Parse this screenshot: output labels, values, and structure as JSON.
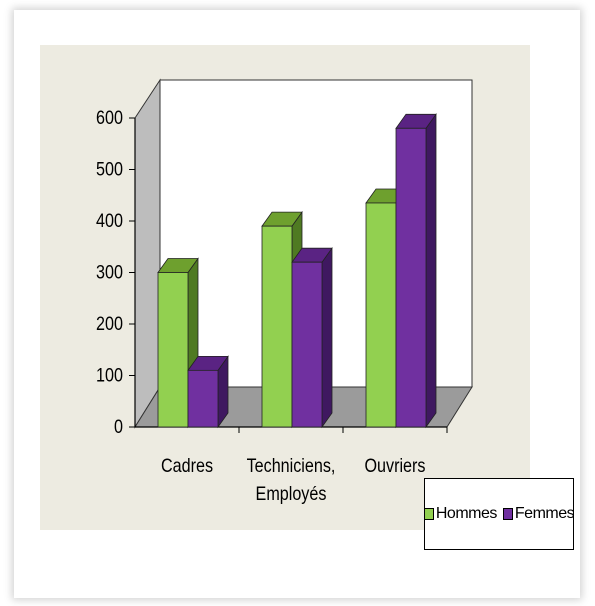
{
  "chart_data": {
    "type": "bar",
    "categories": [
      [
        "Cadres"
      ],
      [
        "Techniciens,",
        "Employés"
      ],
      [
        "Ouvriers"
      ]
    ],
    "series": [
      {
        "name": "Hommes",
        "values": [
          300,
          390,
          435
        ],
        "color": "#92d050",
        "top_color": "#6ea02e",
        "side_color": "#4f7a22"
      },
      {
        "name": "Femmes",
        "values": [
          110,
          320,
          580
        ],
        "color": "#7030a0",
        "top_color": "#5a2383",
        "side_color": "#3f1860"
      }
    ],
    "ylim": [
      0,
      600
    ],
    "yticks": [
      0,
      100,
      200,
      300,
      400,
      500,
      600
    ],
    "grid": false,
    "legend_position": "bottom-right",
    "colors": {
      "plot_background": "#edebe1",
      "wall": "#ffffff",
      "floor": "#9b9b9b"
    }
  }
}
